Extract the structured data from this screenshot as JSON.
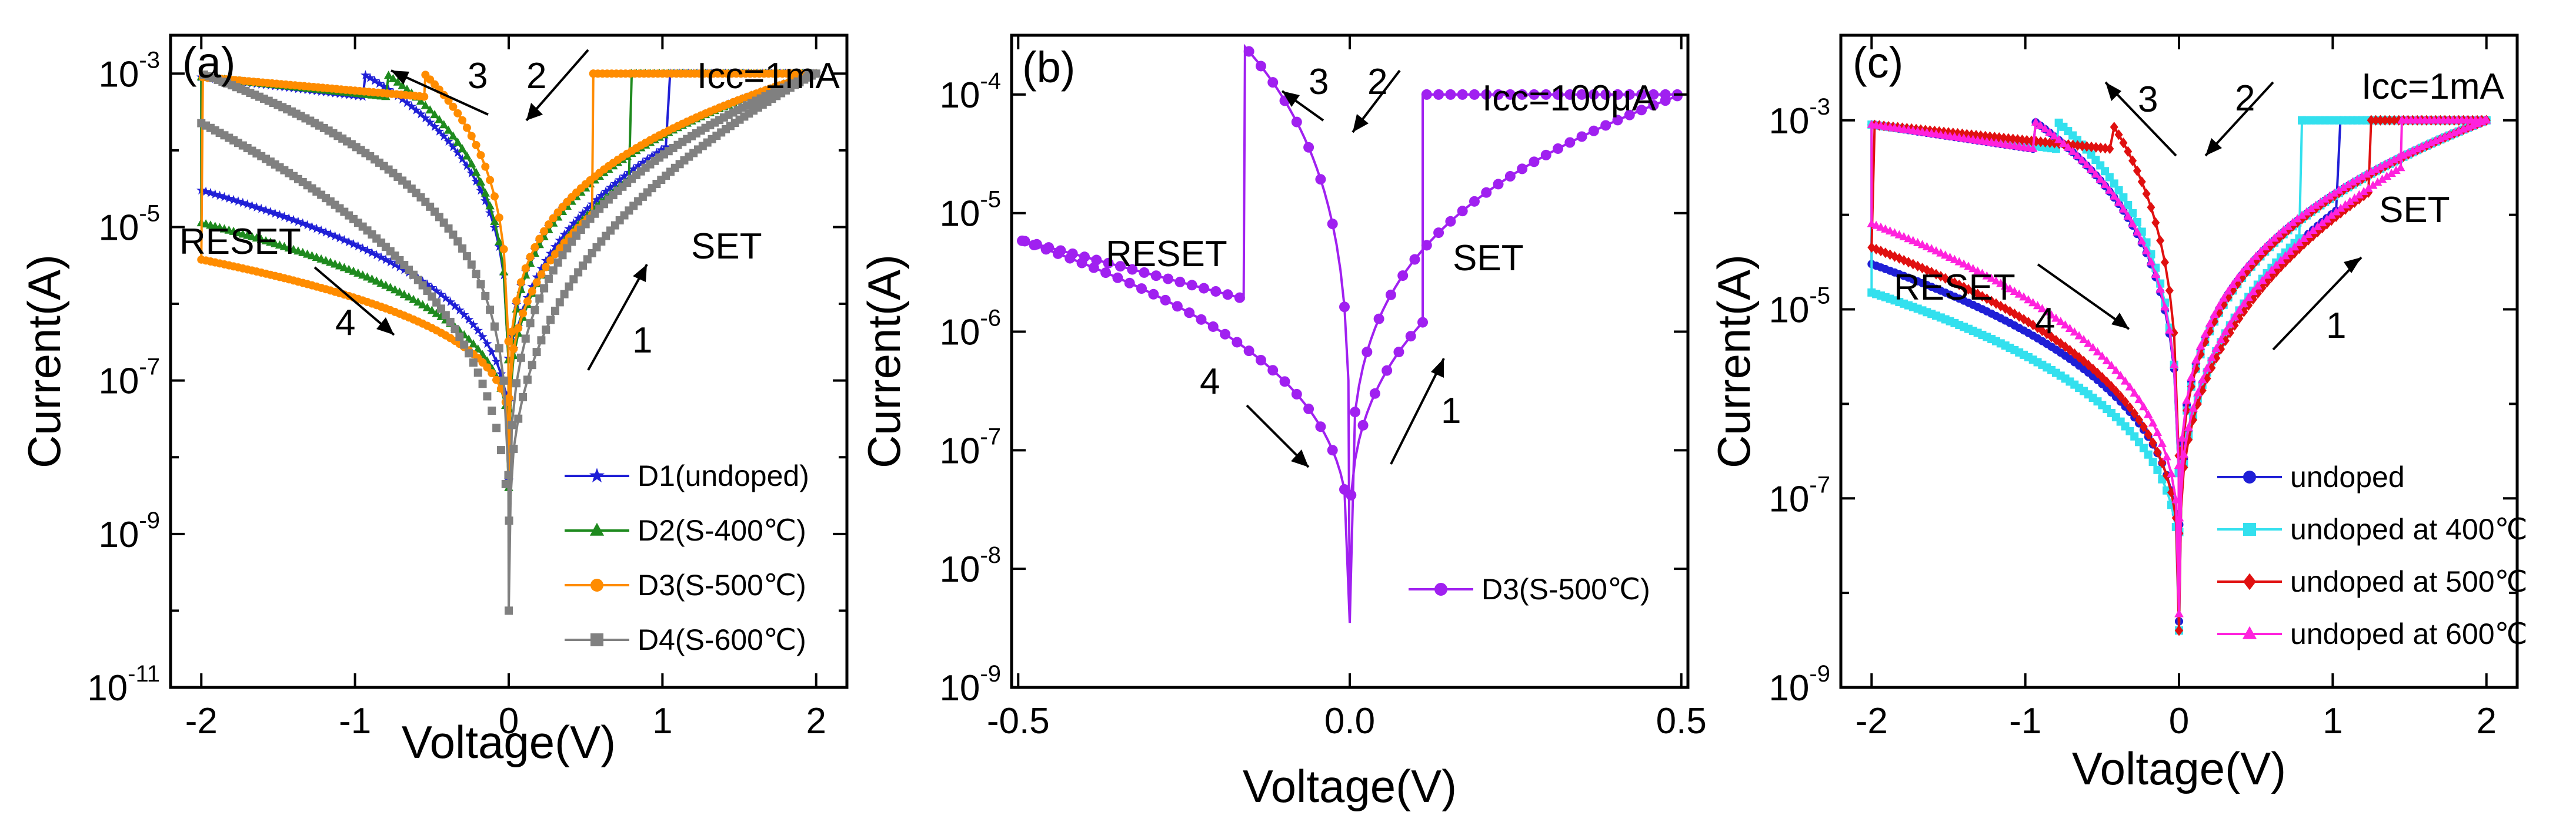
{
  "chart_data": [
    {
      "panel": "(a)",
      "type": "line",
      "scale_y": "log",
      "xlabel": "Voltage(V)",
      "ylabel": "Current(A)",
      "xlim": [
        -2.2,
        2.2
      ],
      "ylim_exp": [
        -11,
        -2.5
      ],
      "xticks": [
        -2,
        -1,
        0,
        1,
        2
      ],
      "xtick_labels": [
        "-2",
        "-1",
        "0",
        "1",
        "2"
      ],
      "yticks_exp": [
        -11,
        -9,
        -7,
        -5,
        -3
      ],
      "ytick_base": "10",
      "ytick_exps": [
        "-11",
        "-9",
        "-7",
        "-5",
        "-3"
      ],
      "icc_label": "Icc=1mA",
      "texts": [
        "RESET",
        "SET"
      ],
      "arrow_labels": [
        "1",
        "2",
        "3",
        "4"
      ],
      "series": [
        {
          "name": "D1(undoped)",
          "color": "#1f1fd6",
          "marker": "star",
          "set_voltage": 1.05,
          "reset_voltage": -0.95,
          "hrs_current_at_set": 0.00012,
          "lrs_current": 0.001,
          "min_current": 5e-09
        },
        {
          "name": "D2(S-400℃)",
          "color": "#1e8a1e",
          "marker": "triangle",
          "set_voltage": 0.8,
          "reset_voltage": -0.8,
          "hrs_current_at_set": 4.5e-05,
          "lrs_current": 0.001,
          "min_current": 4e-09
        },
        {
          "name": "D3(S-500℃)",
          "color": "#ff8c00",
          "marker": "circle",
          "set_voltage": 0.55,
          "reset_voltage": -0.55,
          "hrs_current_at_set": 1.5e-05,
          "lrs_current": 0.001,
          "min_current": 6e-09
        },
        {
          "name": "D4(S-600℃)",
          "color": "#808080",
          "marker": "square",
          "set_voltage": 1.95,
          "reset_voltage": -2.0,
          "hrs_current_at_set": 0.0009,
          "lrs_current": 0.001,
          "min_current": 1e-10
        }
      ]
    },
    {
      "panel": "(b)",
      "type": "line",
      "scale_y": "log",
      "xlabel": "Voltage(V)",
      "ylabel": "Current(A)",
      "xlim": [
        -0.51,
        0.51
      ],
      "ylim_exp": [
        -9,
        -3.5
      ],
      "xticks": [
        -0.5,
        0.0,
        0.5
      ],
      "xtick_labels": [
        "-0.5",
        "0.0",
        "0.5"
      ],
      "yticks_exp": [
        -9,
        -8,
        -7,
        -6,
        -5,
        -4
      ],
      "ytick_base": "10",
      "ytick_exps": [
        "-9",
        "-8",
        "-7",
        "-6",
        "-5",
        "-4"
      ],
      "icc_label": "Icc=100μA",
      "texts": [
        "RESET",
        "SET"
      ],
      "arrow_labels": [
        "1",
        "2",
        "3",
        "4"
      ],
      "series": [
        {
          "name": "D3(S-500℃)",
          "color": "#a020f0",
          "marker": "circle",
          "set_voltage": 0.11,
          "reset_voltage": -0.16,
          "hrs_current_at_set": 1.2e-06,
          "lrs_current": 0.0001,
          "current_at_minus_0_5V": 6e-06,
          "lrs_peak_current": 0.00026,
          "min_current": 3.5e-09
        }
      ]
    },
    {
      "panel": "(c)",
      "type": "line",
      "scale_y": "log",
      "xlabel": "Voltage(V)",
      "ylabel": "Current(A)",
      "xlim": [
        -2.2,
        2.2
      ],
      "ylim_exp": [
        -9,
        -2.1
      ],
      "xticks": [
        -2,
        -1,
        0,
        1,
        2
      ],
      "xtick_labels": [
        "-2",
        "-1",
        "0",
        "1",
        "2"
      ],
      "yticks_exp": [
        -9,
        -7,
        -5,
        -3
      ],
      "ytick_base": "10",
      "ytick_exps": [
        "-9",
        "-7",
        "-5",
        "-3"
      ],
      "icc_label": "Icc=1mA",
      "texts": [
        "RESET",
        "SET"
      ],
      "arrow_labels": [
        "1",
        "2",
        "3",
        "4"
      ],
      "series": [
        {
          "name": "undoped",
          "color": "#1f1fd6",
          "marker": "circle",
          "set_voltage": 1.05,
          "reset_voltage": -0.95,
          "hrs_current_at_set": 0.00012,
          "lrs_current": 0.001,
          "min_current": 5e-09
        },
        {
          "name": "undoped at 400℃",
          "color": "#33e0ee",
          "marker": "square",
          "set_voltage": 0.8,
          "reset_voltage": -0.8,
          "hrs_current_at_set": 6e-05,
          "lrs_current": 0.001,
          "min_current": 4e-09
        },
        {
          "name": "undoped at 500℃",
          "color": "#e01010",
          "marker": "diamond",
          "set_voltage": 1.25,
          "reset_voltage": -0.45,
          "hrs_current_at_set": 0.00018,
          "lrs_current": 0.001,
          "min_current": 4e-09
        },
        {
          "name": "undoped at 600℃",
          "color": "#ff22dd",
          "marker": "triangle",
          "set_voltage": 1.45,
          "reset_voltage": -0.95,
          "hrs_current_at_set": 0.00032,
          "lrs_current": 0.001,
          "min_current": 6e-09
        }
      ]
    }
  ]
}
